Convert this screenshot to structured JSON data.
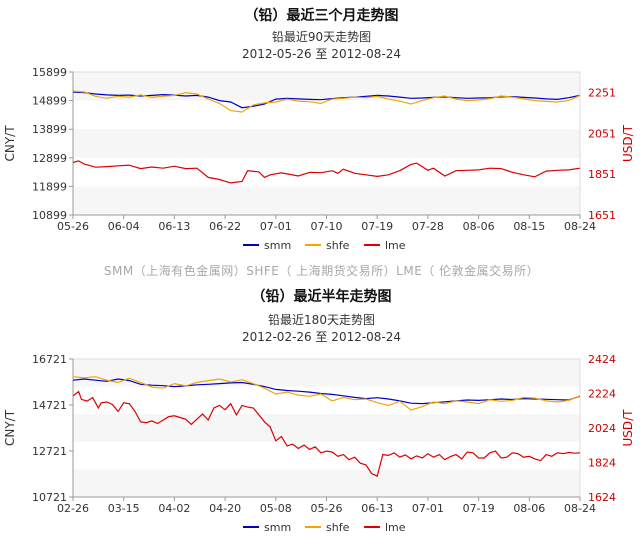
{
  "page": {
    "heading_top": "（铅）最近三个月走势图",
    "watermark": "SMM（上海有色金属网）SHFE（ 上海期货交易所）LME（ 伦敦金属交易所）",
    "heading_bottom": "（铅）最近半年走势图"
  },
  "colors": {
    "smm": "#0000cc",
    "shfe": "#f0a800",
    "lme": "#dd0000",
    "right_axis": "#cc0000"
  },
  "chart_data": [
    {
      "type": "line",
      "title": "铅最近90天走势图",
      "subtitle": "2012-05-26 至 2012-08-24",
      "ylabel": "CNY/T",
      "y2label": "USD/T",
      "ylim": [
        10899,
        15899
      ],
      "y2lim": [
        1651,
        2351
      ],
      "yticks": [
        "15899",
        "14899",
        "13899",
        "12899",
        "11899",
        "10899"
      ],
      "y2ticks": [
        "2251",
        "2051",
        "1851",
        "1651"
      ],
      "xticks": [
        "05-26",
        "06-04",
        "06-13",
        "06-22",
        "07-01",
        "07-10",
        "07-19",
        "07-28",
        "08-06",
        "08-15",
        "08-24"
      ],
      "legend": [
        "smm",
        "shfe",
        "lme"
      ],
      "series": [
        {
          "name": "smm",
          "axis": "left",
          "x": [
            0,
            2,
            4,
            6,
            8,
            10,
            12,
            14,
            16,
            18,
            20,
            22,
            24,
            26,
            28,
            30,
            32,
            34,
            36,
            38,
            40,
            42,
            44,
            46,
            48,
            50,
            52,
            54,
            56,
            58,
            60,
            62,
            64,
            66,
            68,
            70,
            72,
            74,
            76,
            78,
            80,
            82,
            84,
            86,
            88,
            90
          ],
          "values": [
            15200,
            15180,
            15130,
            15100,
            15080,
            15090,
            15060,
            15080,
            15110,
            15090,
            15060,
            15080,
            15020,
            14900,
            14850,
            14650,
            14700,
            14780,
            14950,
            14980,
            14960,
            14940,
            14930,
            14970,
            15000,
            15020,
            15050,
            15080,
            15060,
            15020,
            14980,
            14990,
            15010,
            15030,
            15000,
            14980,
            14990,
            15000,
            15030,
            15040,
            15010,
            14990,
            14960,
            14940,
            15000,
            15080
          ]
        },
        {
          "name": "shfe",
          "axis": "left",
          "x": [
            0,
            2,
            4,
            6,
            8,
            10,
            12,
            14,
            16,
            18,
            20,
            22,
            24,
            26,
            28,
            30,
            32,
            34,
            36,
            38,
            40,
            42,
            44,
            46,
            48,
            50,
            52,
            54,
            56,
            58,
            60,
            62,
            64,
            66,
            68,
            70,
            72,
            74,
            76,
            78,
            80,
            82,
            84,
            86,
            88,
            90
          ],
          "values": [
            15230,
            15200,
            15050,
            14980,
            15050,
            15020,
            15100,
            15010,
            15050,
            15080,
            15180,
            15130,
            14950,
            14800,
            14550,
            14500,
            14750,
            14820,
            14850,
            14950,
            14880,
            14860,
            14800,
            14950,
            14980,
            15020,
            15000,
            15050,
            14950,
            14880,
            14780,
            14900,
            15000,
            15060,
            14950,
            14900,
            14920,
            14970,
            15060,
            15020,
            14960,
            14900,
            14870,
            14850,
            14900,
            15080
          ]
        },
        {
          "name": "lme",
          "axis": "right",
          "x": [
            0,
            1,
            2,
            4,
            6,
            8,
            10,
            12,
            14,
            16,
            18,
            20,
            22,
            24,
            26,
            27,
            28,
            30,
            31,
            33,
            34,
            35,
            37,
            38,
            40,
            42,
            44,
            46,
            47,
            48,
            50,
            52,
            54,
            56,
            58,
            60,
            61,
            63,
            64,
            66,
            68,
            70,
            72,
            74,
            76,
            78,
            80,
            82,
            84,
            86,
            88,
            90
          ],
          "values": [
            1908,
            1916,
            1900,
            1885,
            1888,
            1892,
            1895,
            1878,
            1886,
            1880,
            1890,
            1878,
            1880,
            1835,
            1825,
            1816,
            1808,
            1815,
            1868,
            1862,
            1835,
            1848,
            1857,
            1852,
            1842,
            1860,
            1858,
            1868,
            1855,
            1875,
            1855,
            1848,
            1840,
            1848,
            1868,
            1898,
            1905,
            1870,
            1880,
            1842,
            1868,
            1870,
            1872,
            1880,
            1878,
            1860,
            1848,
            1838,
            1866,
            1870,
            1872,
            1880
          ]
        }
      ]
    },
    {
      "type": "line",
      "title": "铅最近180天走势图",
      "subtitle": "2012-02-26 至 2012-08-24",
      "ylabel": "CNY/T",
      "y2label": "USD/T",
      "ylim": [
        10721,
        16721
      ],
      "y2lim": [
        1624,
        2424
      ],
      "yticks": [
        "16721",
        "14721",
        "12721",
        "10721"
      ],
      "y2ticks": [
        "2424",
        "2224",
        "2024",
        "1824",
        "1624"
      ],
      "xticks": [
        "02-26",
        "03-15",
        "04-02",
        "04-20",
        "05-08",
        "05-26",
        "06-13",
        "07-01",
        "07-19",
        "08-06",
        "08-24"
      ],
      "legend": [
        "smm",
        "shfe",
        "lme"
      ],
      "series": [
        {
          "name": "smm",
          "axis": "left",
          "x": [
            0,
            4,
            8,
            12,
            16,
            20,
            24,
            28,
            32,
            36,
            40,
            44,
            48,
            52,
            56,
            60,
            64,
            68,
            72,
            76,
            80,
            84,
            88,
            92,
            96,
            100,
            104,
            108,
            112,
            116,
            120,
            124,
            128,
            132,
            136,
            140,
            144,
            148,
            152,
            156,
            160,
            164,
            168,
            172,
            176,
            180
          ],
          "values": [
            15800,
            15850,
            15800,
            15750,
            15850,
            15780,
            15620,
            15580,
            15560,
            15520,
            15550,
            15600,
            15620,
            15650,
            15680,
            15700,
            15620,
            15520,
            15400,
            15350,
            15320,
            15280,
            15220,
            15180,
            15120,
            15050,
            15000,
            15040,
            14980,
            14900,
            14800,
            14780,
            14820,
            14860,
            14900,
            14940,
            14920,
            14950,
            14980,
            14960,
            15000,
            14980,
            14970,
            14950,
            14940,
            15100
          ]
        },
        {
          "name": "shfe",
          "axis": "left",
          "x": [
            0,
            4,
            8,
            12,
            16,
            20,
            24,
            28,
            32,
            36,
            40,
            44,
            48,
            52,
            56,
            60,
            64,
            68,
            72,
            76,
            80,
            84,
            88,
            92,
            96,
            100,
            104,
            108,
            112,
            116,
            120,
            124,
            128,
            132,
            136,
            140,
            144,
            148,
            152,
            156,
            160,
            164,
            168,
            172,
            176,
            180
          ],
          "values": [
            15950,
            15900,
            15950,
            15800,
            15700,
            15880,
            15700,
            15500,
            15450,
            15650,
            15550,
            15700,
            15780,
            15850,
            15720,
            15820,
            15650,
            15450,
            15200,
            15280,
            15150,
            15100,
            15200,
            14900,
            15050,
            14950,
            14980,
            14820,
            14700,
            14880,
            14500,
            14650,
            14850,
            14780,
            14900,
            14850,
            14780,
            14950,
            14880,
            14920,
            15050,
            15020,
            14900,
            14850,
            14920,
            15120
          ]
        },
        {
          "name": "lme",
          "axis": "right",
          "x": [
            0,
            2,
            3,
            5,
            7,
            9,
            10,
            12,
            14,
            16,
            18,
            20,
            22,
            24,
            26,
            28,
            30,
            32,
            34,
            36,
            38,
            40,
            42,
            44,
            46,
            48,
            50,
            52,
            54,
            56,
            58,
            60,
            62,
            64,
            66,
            68,
            70,
            72,
            74,
            76,
            78,
            80,
            82,
            84,
            86,
            88,
            90,
            92,
            94,
            96,
            98,
            100,
            102,
            104,
            106,
            108,
            110,
            112,
            114,
            116,
            118,
            120,
            122,
            124,
            126,
            128,
            130,
            132,
            134,
            136,
            138,
            140,
            142,
            144,
            146,
            148,
            150,
            152,
            154,
            156,
            158,
            160,
            162,
            164,
            166,
            168,
            170,
            172,
            174,
            176,
            178,
            180
          ],
          "values": [
            2210,
            2235,
            2190,
            2180,
            2200,
            2140,
            2170,
            2175,
            2160,
            2120,
            2170,
            2165,
            2120,
            2060,
            2055,
            2065,
            2050,
            2070,
            2090,
            2095,
            2085,
            2075,
            2045,
            2075,
            2105,
            2070,
            2140,
            2155,
            2130,
            2165,
            2100,
            2155,
            2145,
            2140,
            2100,
            2060,
            2030,
            1950,
            1975,
            1920,
            1930,
            1905,
            1925,
            1900,
            1915,
            1880,
            1890,
            1885,
            1860,
            1870,
            1840,
            1855,
            1820,
            1810,
            1760,
            1745,
            1870,
            1865,
            1880,
            1855,
            1868,
            1845,
            1862,
            1850,
            1875,
            1855,
            1870,
            1840,
            1858,
            1870,
            1845,
            1885,
            1880,
            1850,
            1850,
            1880,
            1890,
            1850,
            1855,
            1880,
            1875,
            1855,
            1860,
            1845,
            1835,
            1870,
            1860,
            1880,
            1875,
            1882,
            1878,
            1880
          ]
        }
      ]
    }
  ]
}
